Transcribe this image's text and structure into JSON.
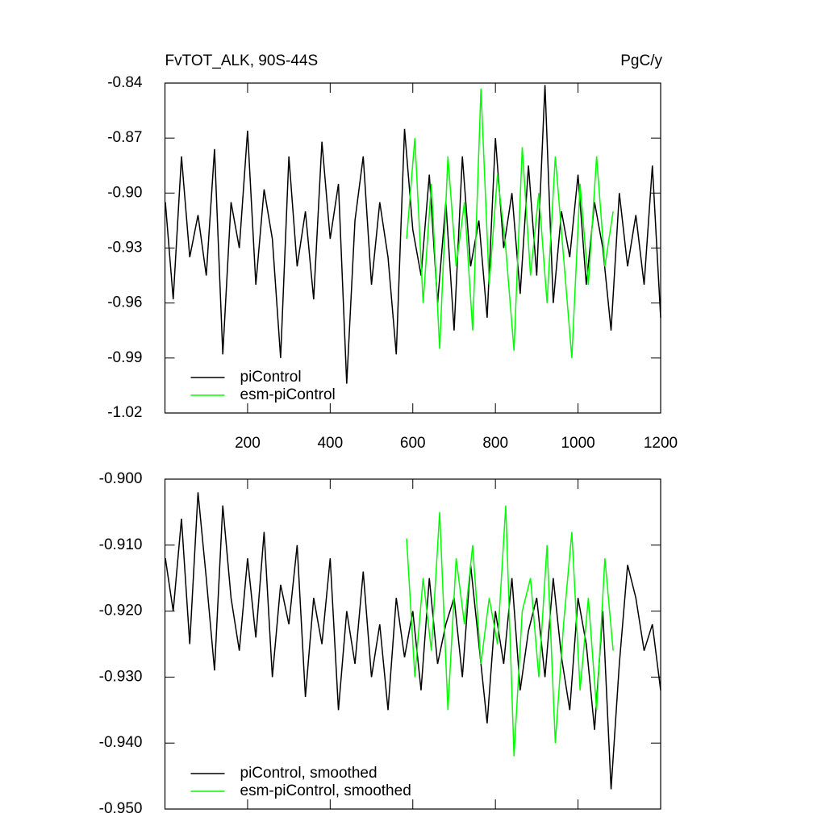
{
  "chart_data": [
    {
      "type": "line",
      "title": "FvTOT_ALK, 90S-44S",
      "units": "PgC/y",
      "xlim": [
        0,
        1200
      ],
      "xticks": [
        200,
        400,
        600,
        800,
        1000,
        1200
      ],
      "ylim": [
        -1.02,
        -0.84
      ],
      "yticks": [
        -0.84,
        -0.87,
        {
          "value": -0.9,
          "label": "-0.90"
        },
        -0.93,
        -0.96,
        -0.99,
        -1.02
      ],
      "legend": "lower left",
      "series": [
        {
          "name": "piControl",
          "color": "#000000",
          "x": [
            1,
            20,
            40,
            60,
            80,
            100,
            120,
            140,
            160,
            180,
            200,
            220,
            240,
            260,
            280,
            300,
            320,
            340,
            360,
            380,
            400,
            420,
            440,
            460,
            480,
            500,
            520,
            540,
            560,
            580,
            600,
            620,
            640,
            660,
            680,
            700,
            720,
            740,
            760,
            780,
            800,
            820,
            840,
            860,
            880,
            900,
            920,
            940,
            960,
            980,
            1000,
            1020,
            1040,
            1060,
            1080,
            1100,
            1120,
            1140,
            1160,
            1180,
            1200
          ],
          "values": [
            -0.905,
            -0.958,
            -0.88,
            -0.935,
            -0.912,
            -0.945,
            -0.876,
            -0.988,
            -0.905,
            -0.93,
            -0.866,
            -0.95,
            -0.898,
            -0.925,
            -0.99,
            -0.88,
            -0.94,
            -0.91,
            -0.958,
            -0.872,
            -0.925,
            -0.895,
            -1.004,
            -0.915,
            -0.88,
            -0.95,
            -0.905,
            -0.935,
            -0.988,
            -0.865,
            -0.92,
            -0.945,
            -0.89,
            -0.96,
            -0.905,
            -0.975,
            -0.88,
            -0.94,
            -0.915,
            -0.968,
            -0.87,
            -0.93,
            -0.9,
            -0.955,
            -0.885,
            -0.945,
            -0.841,
            -0.96,
            -0.91,
            -0.935,
            -0.89,
            -0.95,
            -0.905,
            -0.93,
            -0.975,
            -0.9,
            -0.94,
            -0.912,
            -0.95,
            -0.885,
            -0.968
          ]
        },
        {
          "name": "esm-piControl",
          "color": "#00ff00",
          "x": [
            585,
            605,
            625,
            645,
            665,
            685,
            705,
            725,
            745,
            765,
            785,
            805,
            825,
            845,
            865,
            885,
            905,
            925,
            945,
            965,
            985,
            1005,
            1025,
            1045,
            1065,
            1085
          ],
          "values": [
            -0.925,
            -0.87,
            -0.96,
            -0.895,
            -0.985,
            -0.88,
            -0.94,
            -0.905,
            -0.975,
            -0.843,
            -0.95,
            -0.89,
            -0.93,
            -0.986,
            -0.875,
            -0.945,
            -0.9,
            -0.96,
            -0.88,
            -0.935,
            -0.99,
            -0.895,
            -0.95,
            -0.88,
            -0.94,
            -0.91
          ]
        }
      ]
    },
    {
      "type": "line",
      "xlim": [
        0,
        1200
      ],
      "xticks": [
        200,
        400,
        600,
        800,
        1000,
        1200
      ],
      "ylim": [
        -0.95,
        -0.9
      ],
      "yticks": [
        {
          "value": -0.9,
          "label": "-0.900"
        },
        {
          "value": -0.91,
          "label": "-0.910"
        },
        {
          "value": -0.92,
          "label": "-0.920"
        },
        {
          "value": -0.93,
          "label": "-0.930"
        },
        {
          "value": -0.94,
          "label": "-0.940"
        },
        {
          "value": -0.95,
          "label": "-0.950"
        }
      ],
      "legend": "lower left",
      "series": [
        {
          "name": "piControl, smoothed",
          "color": "#000000",
          "x": [
            1,
            20,
            40,
            60,
            80,
            100,
            120,
            140,
            160,
            180,
            200,
            220,
            240,
            260,
            280,
            300,
            320,
            340,
            360,
            380,
            400,
            420,
            440,
            460,
            480,
            500,
            520,
            540,
            560,
            580,
            600,
            620,
            640,
            660,
            680,
            700,
            720,
            740,
            760,
            780,
            800,
            820,
            840,
            860,
            880,
            900,
            920,
            940,
            960,
            980,
            1000,
            1020,
            1040,
            1060,
            1080,
            1100,
            1120,
            1140,
            1160,
            1180,
            1200
          ],
          "values": [
            -0.912,
            -0.92,
            -0.906,
            -0.925,
            -0.902,
            -0.915,
            -0.929,
            -0.904,
            -0.918,
            -0.926,
            -0.912,
            -0.924,
            -0.908,
            -0.93,
            -0.916,
            -0.922,
            -0.91,
            -0.933,
            -0.918,
            -0.925,
            -0.912,
            -0.935,
            -0.92,
            -0.928,
            -0.914,
            -0.93,
            -0.922,
            -0.935,
            -0.918,
            -0.927,
            -0.92,
            -0.932,
            -0.915,
            -0.928,
            -0.922,
            -0.918,
            -0.93,
            -0.913,
            -0.925,
            -0.937,
            -0.92,
            -0.928,
            -0.915,
            -0.932,
            -0.923,
            -0.918,
            -0.93,
            -0.915,
            -0.927,
            -0.935,
            -0.918,
            -0.925,
            -0.938,
            -0.92,
            -0.947,
            -0.928,
            -0.913,
            -0.918,
            -0.926,
            -0.922,
            -0.932
          ]
        },
        {
          "name": "esm-piControl, smoothed",
          "color": "#00ff00",
          "x": [
            585,
            605,
            625,
            645,
            665,
            685,
            705,
            725,
            745,
            765,
            785,
            805,
            825,
            845,
            865,
            885,
            905,
            925,
            945,
            965,
            985,
            1005,
            1025,
            1045,
            1065,
            1085
          ],
          "values": [
            -0.909,
            -0.93,
            -0.915,
            -0.926,
            -0.905,
            -0.935,
            -0.912,
            -0.922,
            -0.91,
            -0.928,
            -0.918,
            -0.925,
            -0.904,
            -0.942,
            -0.92,
            -0.915,
            -0.93,
            -0.91,
            -0.94,
            -0.922,
            -0.908,
            -0.932,
            -0.918,
            -0.935,
            -0.912,
            -0.926
          ]
        }
      ]
    }
  ]
}
